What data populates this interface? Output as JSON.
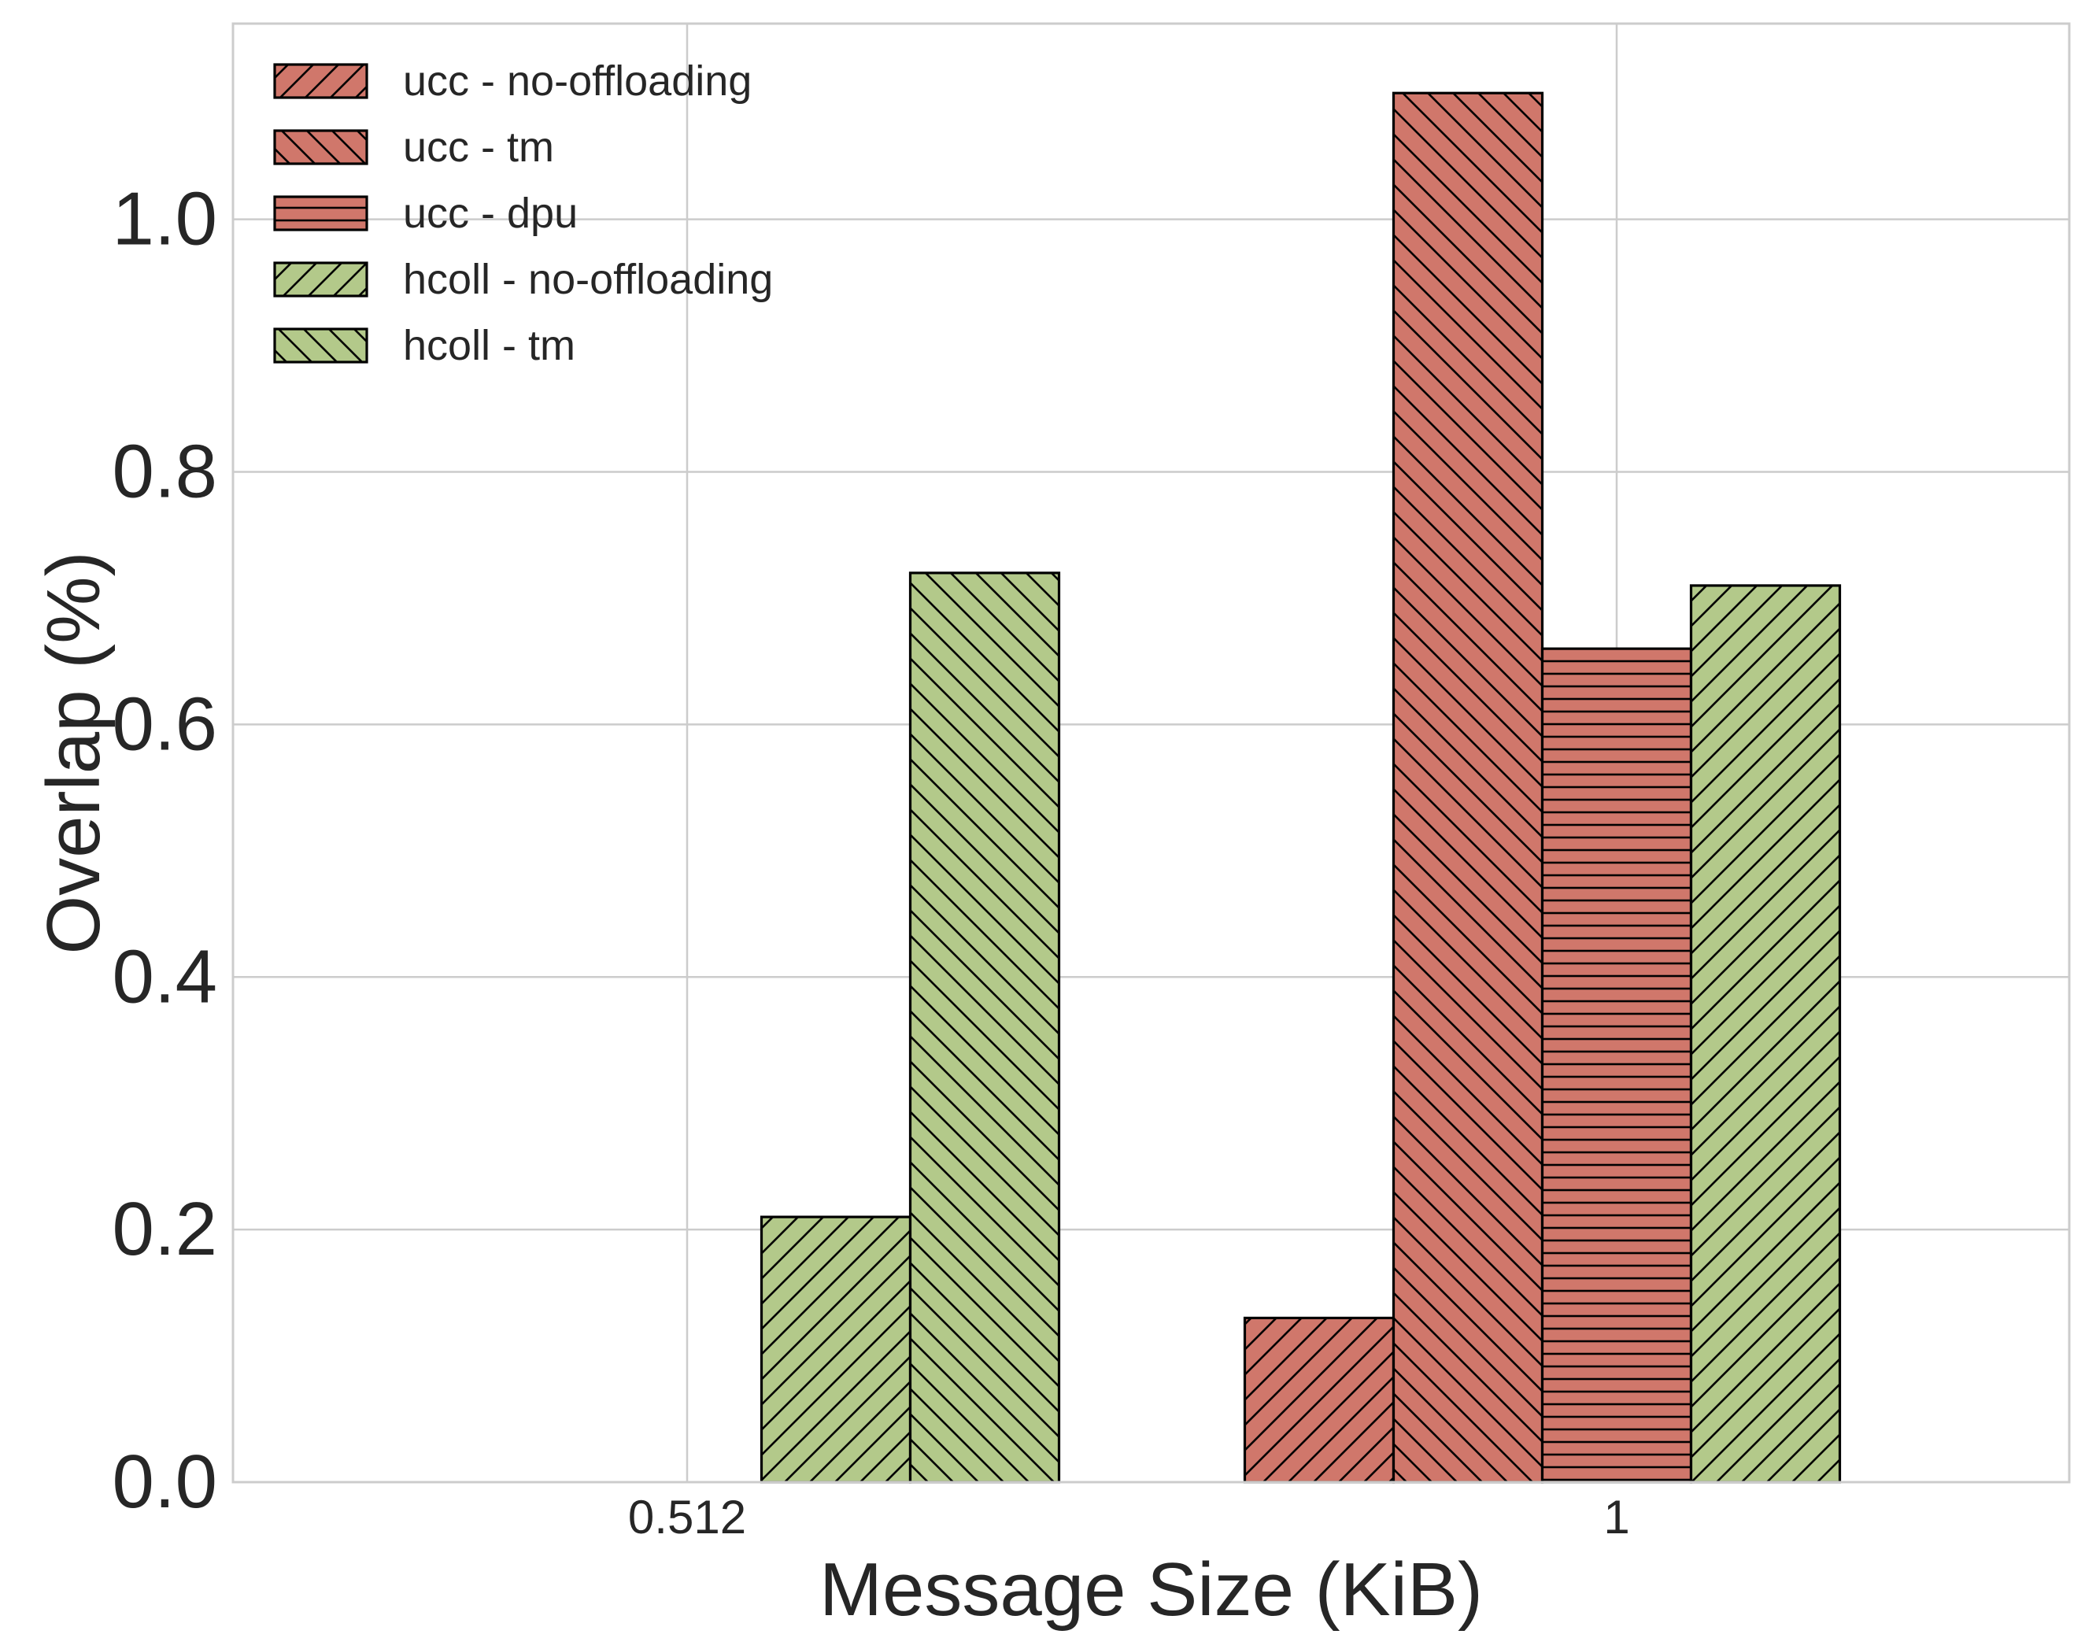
{
  "chart_data": {
    "type": "bar",
    "title": "",
    "xlabel": "Message Size (KiB)",
    "ylabel": "Overlap (%)",
    "categories": [
      "0.512",
      "1"
    ],
    "ylim": [
      0,
      1.155
    ],
    "yticks": [
      "0.0",
      "0.2",
      "0.4",
      "0.6",
      "0.8",
      "1.0"
    ],
    "grid": true,
    "legend_position": "top-left",
    "series": [
      {
        "name": "ucc - no-offloading",
        "color": "#d0776b",
        "hatch": "forward-diagonal",
        "values": [
          0,
          0.13
        ]
      },
      {
        "name": "ucc - tm",
        "color": "#d0776b",
        "hatch": "back-diagonal",
        "values": [
          0,
          1.1
        ]
      },
      {
        "name": "ucc - dpu",
        "color": "#d0776b",
        "hatch": "horizontal",
        "values": [
          0,
          0.66
        ]
      },
      {
        "name": "hcoll - no-offloading",
        "color": "#b3c98a",
        "hatch": "forward-diagonal",
        "values": [
          0.21,
          0.71
        ]
      },
      {
        "name": "hcoll - tm",
        "color": "#b3c98a",
        "hatch": "back-diagonal",
        "values": [
          0.72,
          0
        ]
      }
    ]
  }
}
